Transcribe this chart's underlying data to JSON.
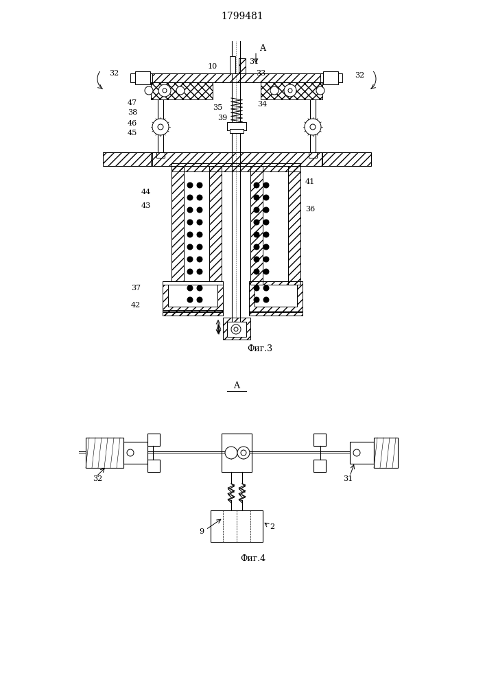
{
  "title": "1799481",
  "fig3_label": "Фиг.3",
  "fig4_label": "Фиг.4",
  "bg_color": "#ffffff"
}
